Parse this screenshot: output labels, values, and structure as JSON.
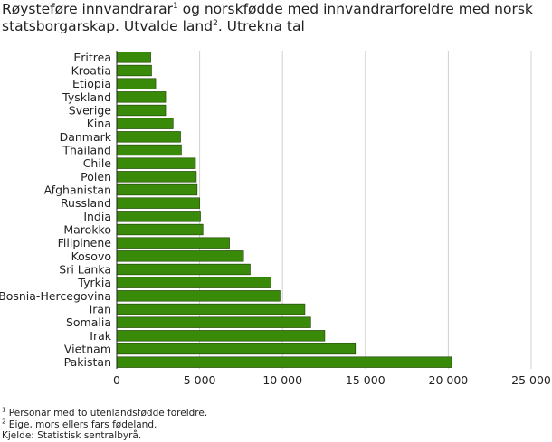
{
  "title": {
    "part1": "Røysteføre innvandrarar",
    "sup1": "1",
    "part2": " og norskfødde med innvandrarforeldre med norsk statsborgarskap. Utvalde land",
    "sup2": "2",
    "part3": ". Utrekna tal"
  },
  "footnotes": {
    "note1_sup": "1",
    "note1": " Personar med to utenlandsfødde foreldre.",
    "note2_sup": "2",
    "note2": " Eige, mors ellers fars fødeland.",
    "source": "Kjelde: Statistisk sentralbyrå."
  },
  "colors": {
    "bar": "#3a8a0a",
    "bar_stroke": "#1a3d00",
    "grid": "#d0d0d0",
    "axis": "#222222"
  },
  "chart_data": {
    "type": "bar",
    "orientation": "horizontal",
    "title": "Røysteføre innvandrarar og norskfødde med innvandrarforeldre med norsk statsborgarskap. Utvalde land. Utrekna tal",
    "xlabel": "",
    "ylabel": "",
    "xlim": [
      0,
      25000
    ],
    "grid": true,
    "ticks": [
      0,
      5000,
      10000,
      15000,
      20000,
      25000
    ],
    "tick_labels": [
      "0",
      "5 000",
      "10 000",
      "15 000",
      "20 000",
      "25 000"
    ],
    "categories": [
      "Eritrea",
      "Kroatia",
      "Etiopia",
      "Tyskland",
      "Sverige",
      "Kina",
      "Danmark",
      "Thailand",
      "Chile",
      "Polen",
      "Afghanistan",
      "Russland",
      "India",
      "Marokko",
      "Filipinene",
      "Kosovo",
      "Sri Lanka",
      "Tyrkia",
      "Bosnia-Hercegovina",
      "Iran",
      "Somalia",
      "Irak",
      "Vietnam",
      "Pakistan"
    ],
    "values": [
      2050,
      2100,
      2350,
      2950,
      2950,
      3400,
      3850,
      3900,
      4750,
      4800,
      4850,
      5000,
      5050,
      5200,
      6800,
      7650,
      8050,
      9300,
      9850,
      11350,
      11700,
      12550,
      14400,
      20200
    ]
  }
}
